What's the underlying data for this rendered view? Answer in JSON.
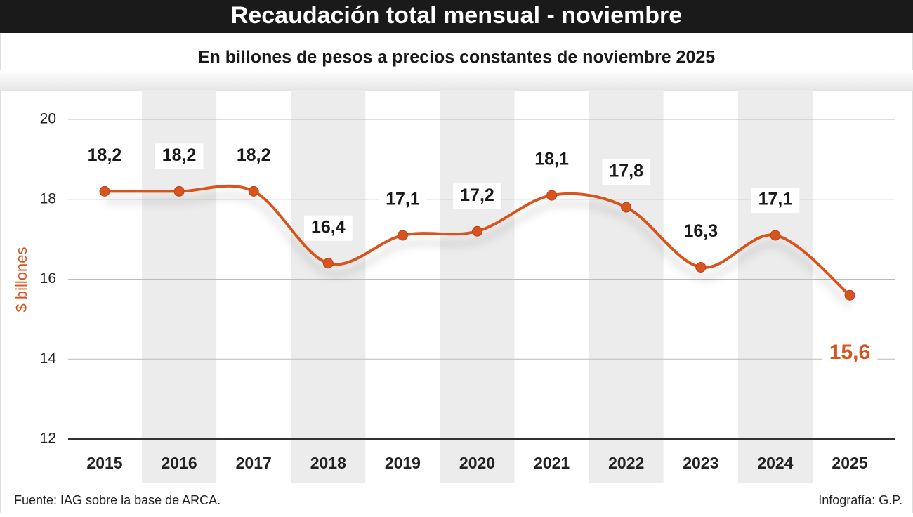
{
  "chart_data": {
    "type": "line",
    "title": "Recaudación total mensual - noviembre",
    "subtitle": "En billones de pesos a precios constantes de noviembre 2025",
    "y_label": "$ billones",
    "source": "Fuente: IAG sobre la base de ARCA.",
    "credit": "Infografía: G.P.",
    "categories": [
      "2015",
      "2016",
      "2017",
      "2018",
      "2019",
      "2020",
      "2021",
      "2022",
      "2023",
      "2024",
      "2025"
    ],
    "values": [
      18.2,
      18.2,
      18.2,
      16.4,
      17.1,
      17.2,
      18.1,
      17.8,
      16.3,
      17.1,
      15.6
    ],
    "value_labels": [
      "18,2",
      "18,2",
      "18,2",
      "16,4",
      "17,1",
      "17,2",
      "18,1",
      "17,8",
      "16,3",
      "17,1",
      "15,6"
    ],
    "color": "#d9531e",
    "ylim": [
      12,
      20
    ],
    "yticks": [
      12,
      14,
      16,
      18,
      20
    ],
    "grid": true
  }
}
